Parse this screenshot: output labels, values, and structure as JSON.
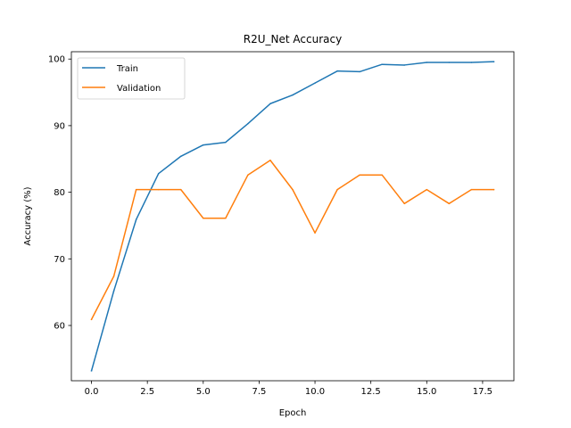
{
  "chart_data": {
    "type": "line",
    "title": "R2U_Net Accuracy",
    "xlabel": "Epoch",
    "ylabel": "Accuracy (%)",
    "xlim": [
      -0.9,
      18.9
    ],
    "ylim": [
      51.7,
      101.1
    ],
    "x": [
      0,
      1,
      2,
      3,
      4,
      5,
      6,
      7,
      8,
      9,
      10,
      11,
      12,
      13,
      14,
      15,
      16,
      17,
      18
    ],
    "xticks": [
      0.0,
      2.5,
      5.0,
      7.5,
      10.0,
      12.5,
      15.0,
      17.5
    ],
    "xtick_labels": [
      "0.0",
      "2.5",
      "5.0",
      "7.5",
      "10.0",
      "12.5",
      "15.0",
      "17.5"
    ],
    "yticks": [
      60,
      70,
      80,
      90,
      100
    ],
    "ytick_labels": [
      "60",
      "70",
      "80",
      "90",
      "100"
    ],
    "grid": false,
    "legend_position": "top-left",
    "series": [
      {
        "name": "Train",
        "color": "#1f77b4",
        "values": [
          53.2,
          65.2,
          75.9,
          82.8,
          85.4,
          87.1,
          87.5,
          90.3,
          93.3,
          94.6,
          96.4,
          98.2,
          98.1,
          99.2,
          99.1,
          99.5,
          99.5,
          99.5,
          99.6
        ]
      },
      {
        "name": "Validation",
        "color": "#ff7f0e",
        "values": [
          60.9,
          67.4,
          80.4,
          80.4,
          80.4,
          76.1,
          76.1,
          82.6,
          84.8,
          80.4,
          73.9,
          80.4,
          82.6,
          82.6,
          78.3,
          80.4,
          78.3,
          80.4,
          80.4
        ]
      }
    ]
  }
}
